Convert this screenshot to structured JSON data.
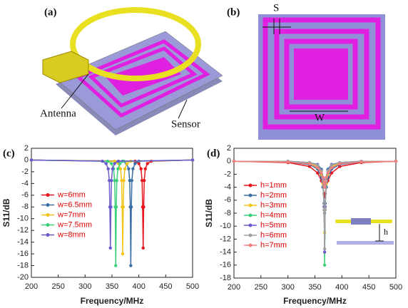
{
  "figure": {
    "panels": {
      "a": {
        "label": "(a)",
        "annotations": [
          "Antenna",
          "Sensor"
        ]
      },
      "b": {
        "label": "(b)",
        "annotations": [
          "S",
          "W"
        ]
      },
      "c": {
        "label": "(c)"
      },
      "d": {
        "label": "(d)",
        "annotations": [
          "h"
        ]
      }
    }
  },
  "chart_data": [
    {
      "type": "line",
      "xlabel": "Frequency/MHz",
      "ylabel": "S11/dB",
      "xlim": [
        200,
        500
      ],
      "xticks": [
        200,
        250,
        300,
        350,
        400,
        450,
        500
      ],
      "ylim": [
        -20,
        2
      ],
      "yticks": [
        2,
        0,
        -2,
        -4,
        -6,
        -8,
        -10,
        -12,
        -14,
        -16,
        -18,
        -20
      ],
      "legend": "left",
      "series": [
        {
          "name": "w=6mm",
          "color": "#e8141e",
          "x": [
            200,
            393,
            400,
            404,
            406,
            407,
            408,
            409,
            410,
            412,
            416,
            423,
            500
          ],
          "values": [
            0,
            -0.2,
            -0.6,
            -1.5,
            -3.5,
            -8,
            -15,
            -8,
            -3.5,
            -1.5,
            -0.6,
            -0.2,
            0
          ]
        },
        {
          "name": "w=6.5mm",
          "color": "#3a6ea5",
          "x": [
            200,
            370,
            377,
            381,
            383,
            384,
            385,
            386,
            387,
            389,
            393,
            400,
            500
          ],
          "values": [
            0,
            -0.2,
            -0.6,
            -1.5,
            -3.5,
            -8,
            -18,
            -8,
            -3.5,
            -1.5,
            -0.6,
            -0.2,
            0
          ]
        },
        {
          "name": "w=7mm",
          "color": "#f0c419",
          "x": [
            200,
            355,
            362,
            366,
            368,
            369,
            370,
            371,
            372,
            374,
            378,
            385,
            500
          ],
          "values": [
            0,
            -0.2,
            -0.6,
            -1.5,
            -3.5,
            -8,
            -16,
            -8,
            -3.5,
            -1.5,
            -0.6,
            -0.2,
            0
          ]
        },
        {
          "name": "w=7.5mm",
          "color": "#3ccf7a",
          "x": [
            200,
            342,
            349,
            353,
            355,
            356,
            357,
            358,
            359,
            361,
            365,
            372,
            500
          ],
          "values": [
            0,
            -0.2,
            -0.6,
            -1.5,
            -3.5,
            -8,
            -18,
            -8,
            -3.5,
            -1.5,
            -0.6,
            -0.2,
            0
          ]
        },
        {
          "name": "w=8mm",
          "color": "#6a5acd",
          "x": [
            200,
            332,
            339,
            343,
            345,
            346,
            347,
            348,
            349,
            351,
            355,
            362,
            500
          ],
          "values": [
            0,
            -0.2,
            -0.6,
            -1.5,
            -3.5,
            -8,
            -15,
            -8,
            -3.5,
            -1.5,
            -0.6,
            -0.2,
            0
          ]
        }
      ]
    },
    {
      "type": "line",
      "xlabel": "Frequency/MHz",
      "ylabel": "S11/dB",
      "xlim": [
        200,
        500
      ],
      "xticks": [
        200,
        250,
        300,
        350,
        400,
        450,
        500
      ],
      "ylim": [
        -18,
        2
      ],
      "yticks": [
        2,
        0,
        -2,
        -4,
        -6,
        -8,
        -10,
        -12,
        -14,
        -16,
        -18
      ],
      "legend": "left",
      "x": [
        200,
        300,
        340,
        355,
        362,
        365,
        367,
        368,
        369,
        371,
        374,
        381,
        396,
        436,
        500
      ],
      "series": [
        {
          "name": "h=1mm",
          "color": "#e8141e",
          "values": [
            0,
            -0.2,
            -0.8,
            -1.8,
            -3,
            -4,
            -5,
            -5.5,
            -5,
            -4,
            -3,
            -1.8,
            -0.8,
            -0.2,
            0
          ]
        },
        {
          "name": "h=2mm",
          "color": "#3a6ea5",
          "values": [
            0,
            -0.1,
            -0.5,
            -1.2,
            -2.5,
            -4,
            -6.5,
            -8,
            -6.5,
            -4,
            -2.5,
            -1.2,
            -0.5,
            -0.1,
            0
          ]
        },
        {
          "name": "h=3mm",
          "color": "#f0c419",
          "values": [
            0,
            -0.1,
            -0.3,
            -0.8,
            -2,
            -3.5,
            -7,
            -11,
            -7,
            -3.5,
            -2,
            -0.8,
            -0.3,
            -0.1,
            0
          ]
        },
        {
          "name": "h=4mm",
          "color": "#3ccf7a",
          "values": [
            0,
            0,
            -0.2,
            -0.5,
            -1.2,
            -2.5,
            -7,
            -16,
            -7,
            -2.5,
            -1.2,
            -0.5,
            -0.2,
            0,
            0
          ]
        },
        {
          "name": "h=5mm",
          "color": "#6a5acd",
          "values": [
            0,
            0,
            -0.2,
            -0.5,
            -1.3,
            -2.8,
            -7,
            -14,
            -7,
            -2.8,
            -1.3,
            -0.5,
            -0.2,
            0,
            0
          ]
        },
        {
          "name": "h=6mm",
          "color": "#a0a0a0",
          "values": [
            0,
            0,
            -0.2,
            -0.6,
            -1.5,
            -3,
            -7.5,
            -13.5,
            -7.5,
            -3,
            -1.5,
            -0.6,
            -0.2,
            0,
            0
          ]
        },
        {
          "name": "h=7mm",
          "color": "#f08080",
          "values": [
            0,
            -0.1,
            -0.4,
            -1,
            -1.8,
            -2.5,
            -3.3,
            -4,
            -3.3,
            -2.5,
            -1.8,
            -1,
            -0.4,
            -0.1,
            0
          ]
        }
      ]
    }
  ]
}
